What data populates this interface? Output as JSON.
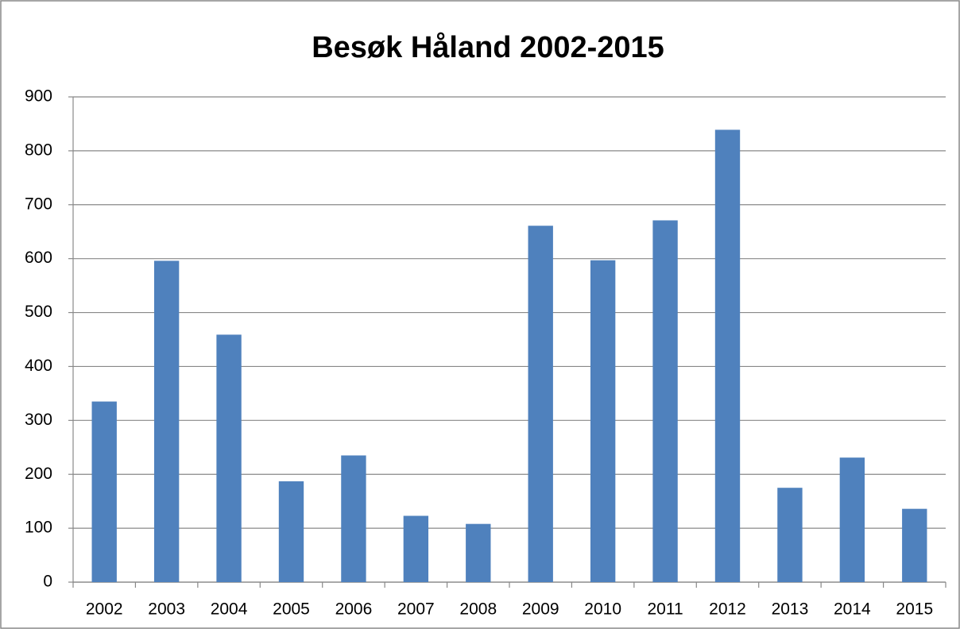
{
  "chart_data": {
    "type": "bar",
    "title": "Besøk Håland 2002-2015",
    "categories": [
      "2002",
      "2003",
      "2004",
      "2005",
      "2006",
      "2007",
      "2008",
      "2009",
      "2010",
      "2011",
      "2012",
      "2013",
      "2014",
      "2015"
    ],
    "values": [
      335,
      596,
      459,
      187,
      235,
      123,
      108,
      661,
      597,
      671,
      839,
      175,
      231,
      136
    ],
    "color": "#4f81bd",
    "ylim": [
      0,
      900
    ],
    "yticks": [
      0,
      100,
      200,
      300,
      400,
      500,
      600,
      700,
      800,
      900
    ],
    "grid": true
  }
}
